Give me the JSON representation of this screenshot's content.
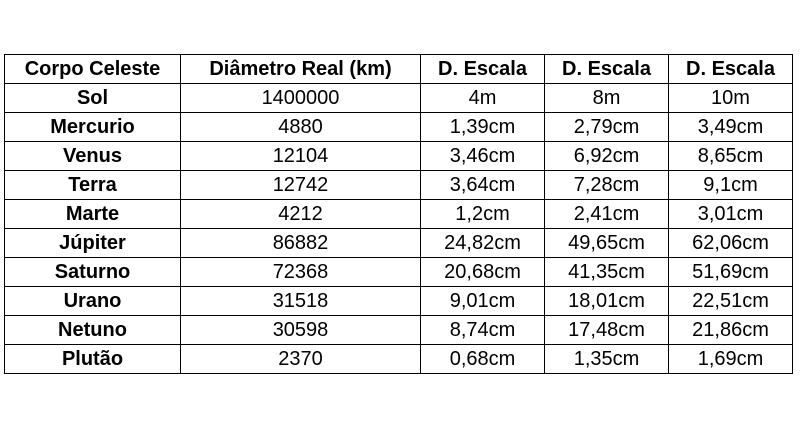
{
  "table": {
    "headers": [
      "Corpo Celeste",
      "Diâmetro Real (km)",
      "D. Escala",
      "D. Escala",
      "D. Escala"
    ],
    "rows": [
      [
        "Sol",
        "1400000",
        "4m",
        "8m",
        "10m"
      ],
      [
        "Mercurio",
        "4880",
        "1,39cm",
        "2,79cm",
        "3,49cm"
      ],
      [
        "Venus",
        "12104",
        "3,46cm",
        "6,92cm",
        "8,65cm"
      ],
      [
        "Terra",
        "12742",
        "3,64cm",
        "7,28cm",
        "9,1cm"
      ],
      [
        "Marte",
        "4212",
        "1,2cm",
        "2,41cm",
        "3,01cm"
      ],
      [
        "Júpiter",
        "86882",
        "24,82cm",
        "49,65cm",
        "62,06cm"
      ],
      [
        "Saturno",
        "72368",
        "20,68cm",
        "41,35cm",
        "51,69cm"
      ],
      [
        "Urano",
        "31518",
        "9,01cm",
        "18,01cm",
        "22,51cm"
      ],
      [
        "Netuno",
        "30598",
        "8,74cm",
        "17,48cm",
        "21,86cm"
      ],
      [
        "Plutão",
        "2370",
        "0,68cm",
        "1,35cm",
        "1,69cm"
      ]
    ]
  }
}
